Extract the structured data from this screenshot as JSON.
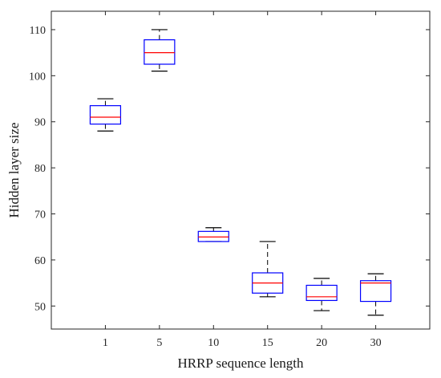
{
  "chart_data": {
    "type": "box",
    "xlabel": "HRRP sequence length",
    "ylabel": "Hidden layer size",
    "ylim": [
      45,
      114
    ],
    "yticks": [
      50,
      60,
      70,
      80,
      90,
      100,
      110
    ],
    "grid": false,
    "colors": {
      "box": "#0000ff",
      "median": "#ff0000",
      "whisker": "#000000",
      "axes": "#262626"
    },
    "categories": [
      "1",
      "5",
      "10",
      "15",
      "20",
      "30"
    ],
    "boxes": [
      {
        "category": "1",
        "min": 88,
        "q1": 89.5,
        "median": 91,
        "q3": 93.5,
        "max": 95
      },
      {
        "category": "5",
        "min": 101,
        "q1": 102.5,
        "median": 105,
        "q3": 107.8,
        "max": 110
      },
      {
        "category": "10",
        "min": 64,
        "q1": 64,
        "median": 65,
        "q3": 66.2,
        "max": 67
      },
      {
        "category": "15",
        "min": 52,
        "q1": 52.8,
        "median": 55,
        "q3": 57.2,
        "max": 64
      },
      {
        "category": "20",
        "min": 49,
        "q1": 51.2,
        "median": 52,
        "q3": 54.5,
        "max": 56
      },
      {
        "category": "30",
        "min": 48,
        "q1": 51,
        "median": 55,
        "q3": 55.5,
        "max": 57
      }
    ]
  }
}
